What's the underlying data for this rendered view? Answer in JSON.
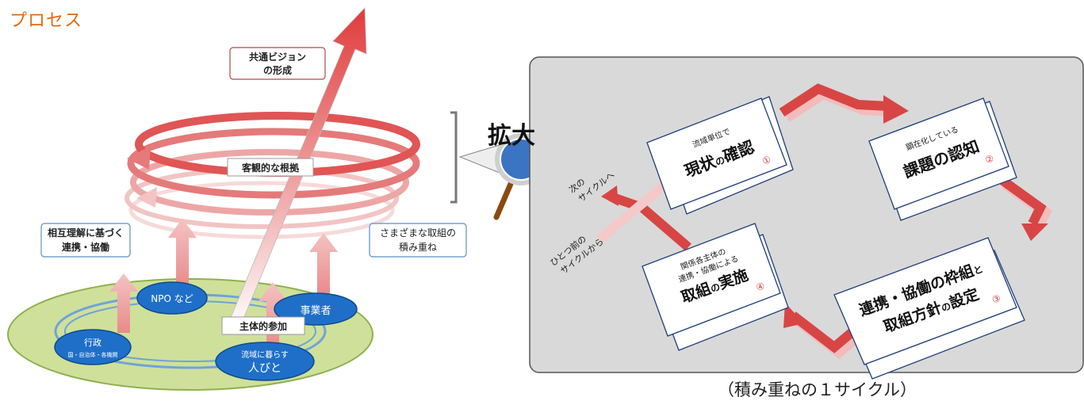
{
  "page": {
    "title": "プロセス",
    "caption": "（積み重ねの１サイクル）"
  },
  "left": {
    "vision_line1": "共通ビジョン",
    "vision_line2": "の形成",
    "objective_basis": "客観的な根拠",
    "mutual_line1": "相互理解に基づく",
    "mutual_line2": "連携・協働",
    "various_line1": "さまざまな取組の",
    "various_line2": "積み重ね",
    "participation": "主体的参加",
    "actors": {
      "npo": "NPO など",
      "business": "事業者",
      "gov": "行政",
      "gov_sub": "国・自治体・各機関",
      "people_small": "流域に暮らす",
      "people_big": "人びと"
    }
  },
  "zoom_label": "拡大",
  "cycle": {
    "next_line1": "次の",
    "next_line2": "サイクルへ",
    "prev_line1": "ひとつ前の",
    "prev_line2": "サイクルから",
    "card1_small": "流域単位で",
    "card1_main_a": "現状",
    "card1_main_b": "の",
    "card1_main_c": "確認",
    "card1_num": "①",
    "card2_small": "顕在化している",
    "card2_main": "課題の認知",
    "card2_num": "②",
    "card3_line1a": "連携・協働の枠組",
    "card3_line1b": "と",
    "card3_line2a": "取組方針",
    "card3_line2b": "の",
    "card3_line2c": "設定",
    "card3_num": "③",
    "card4_small1": "関係各主体の",
    "card4_small2": "連携・協働による",
    "card4_main_a": "取組",
    "card4_main_b": "の",
    "card4_main_c": "実施",
    "card4_num": "④"
  },
  "colors": {
    "title": "#e06a14",
    "arrow": "#e05050",
    "oval": "#cfe09b",
    "actor": "#1f6fc9",
    "panel": "#d9d9d9"
  }
}
